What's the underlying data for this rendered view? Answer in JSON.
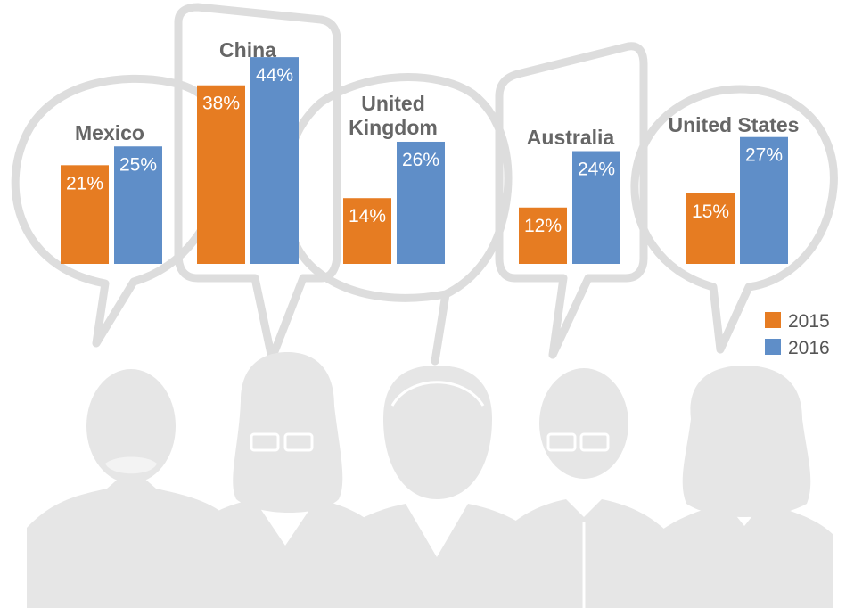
{
  "colors": {
    "y2015": "#e67c22",
    "y2016": "#5f8ec8",
    "bubble": "#dddddd",
    "person": "#e6e6e6"
  },
  "legend": [
    {
      "label": "2015",
      "color": "#e67c22"
    },
    {
      "label": "2016",
      "color": "#5f8ec8"
    }
  ],
  "chart_data": {
    "type": "bar",
    "title": "",
    "categories": [
      "Mexico",
      "China",
      "United Kingdom",
      "Australia",
      "United States"
    ],
    "category_lines": [
      [
        "Mexico"
      ],
      [
        "China"
      ],
      [
        "United",
        "Kingdom"
      ],
      [
        "Australia"
      ],
      [
        "United States"
      ]
    ],
    "series": [
      {
        "name": "2015",
        "values": [
          21,
          38,
          14,
          12,
          15
        ],
        "labels": [
          "21%",
          "38%",
          "14%",
          "12%",
          "15%"
        ]
      },
      {
        "name": "2016",
        "values": [
          25,
          44,
          26,
          24,
          27
        ],
        "labels": [
          "25%",
          "44%",
          "26%",
          "24%",
          "27%"
        ]
      }
    ],
    "unit": "%",
    "legend_position": "bottom-right",
    "grid": false
  }
}
